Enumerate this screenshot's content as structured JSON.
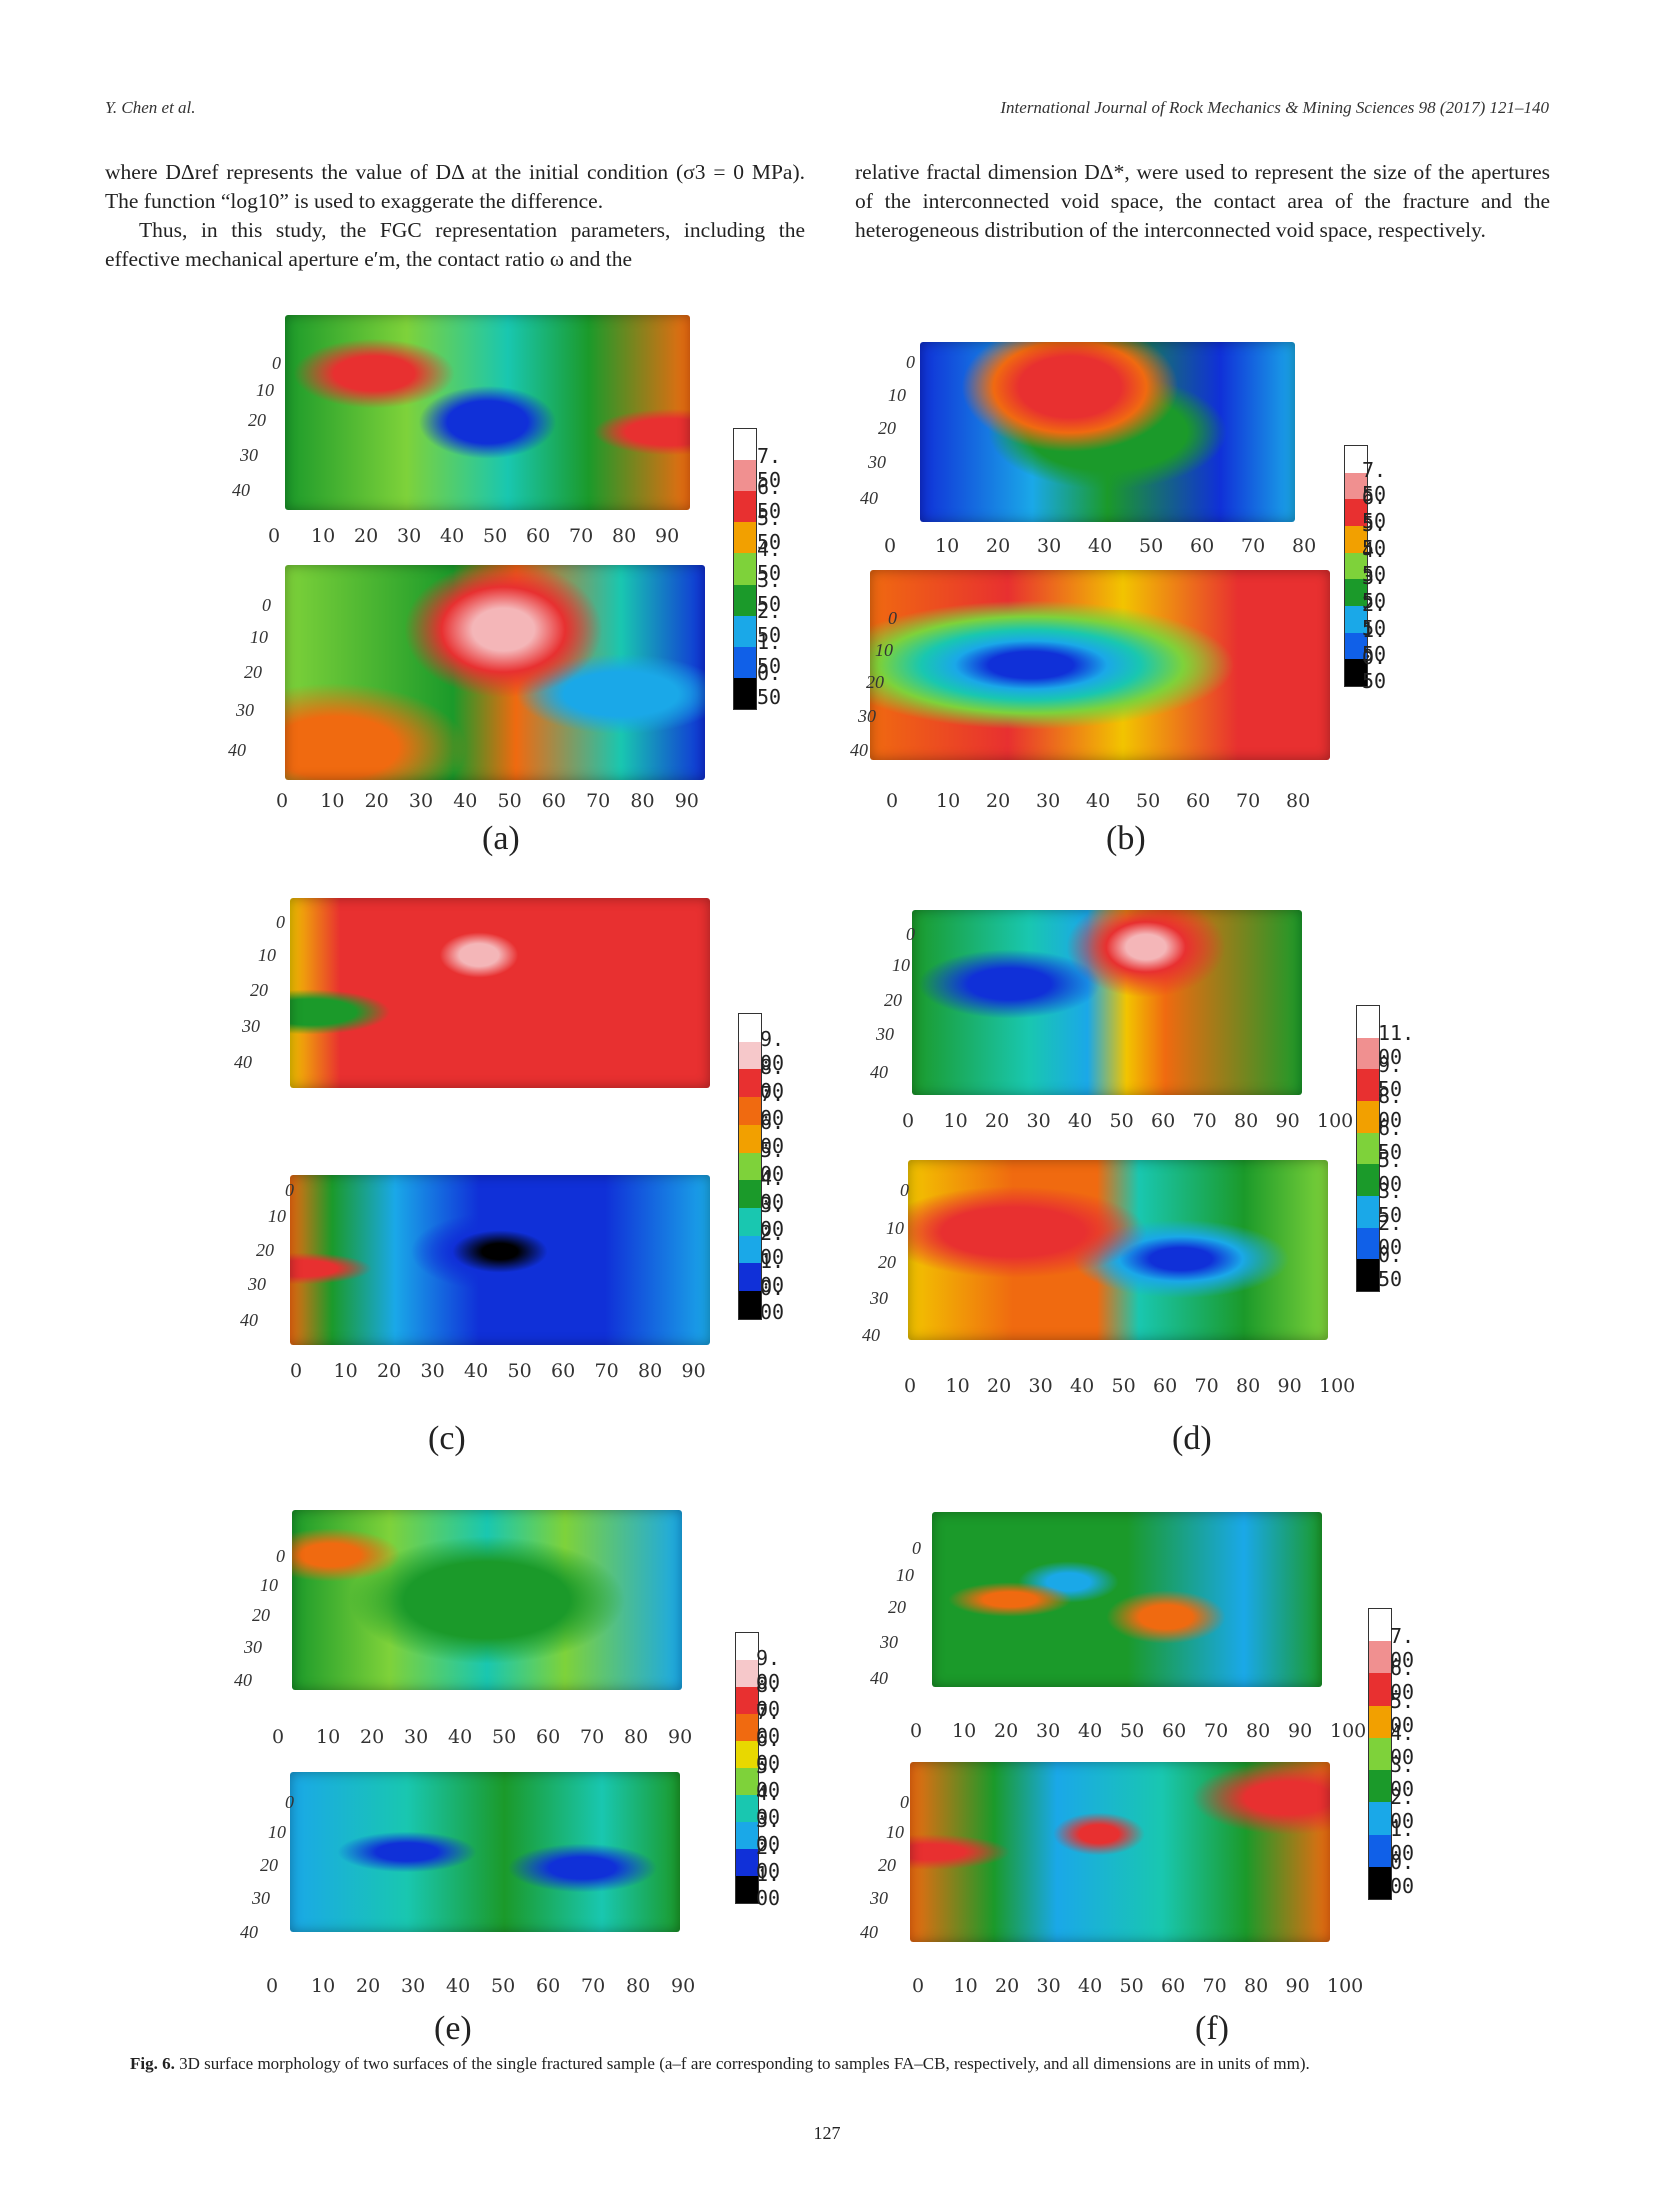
{
  "header": {
    "left": "Y. Chen et al.",
    "right": "International Journal of Rock Mechanics & Mining Sciences 98 (2017) 121–140"
  },
  "text_left": {
    "p1": "where DΔref represents the value of DΔ at the initial condition (σ3 = 0 MPa). The function “log10” is used to exaggerate the difference.",
    "p2": "Thus, in this study, the FGC representation parameters, including the effective mechanical aperture e′m, the contact ratio ω and the"
  },
  "text_right": {
    "p1": "relative fractal dimension DΔ*, were used to represent the size of the apertures of the interconnected void space, the contact area of the fracture and the heterogeneous distribution of the interconnected void space, respectively."
  },
  "figures": {
    "a": {
      "label": "(a)",
      "yticks": [
        "0",
        "10",
        "20",
        "30",
        "40"
      ],
      "xticks": [
        "0",
        "10",
        "20",
        "30",
        "40",
        "50",
        "60",
        "70",
        "80",
        "90"
      ],
      "colorbar": [
        "7. 50",
        "6. 50",
        "5. 50",
        "4. 50",
        "3. 50",
        "2. 50",
        "1. 50",
        "0. 50"
      ]
    },
    "b": {
      "label": "(b)",
      "yticks": [
        "0",
        "10",
        "20",
        "30",
        "40"
      ],
      "xticks": [
        "0",
        "10",
        "20",
        "30",
        "40",
        "50",
        "60",
        "70",
        "80"
      ],
      "colorbar": [
        "7. 50",
        "6. 50",
        "5. 50",
        "4. 50",
        "3. 50",
        "2. 50",
        "1. 50",
        "0. 50"
      ]
    },
    "c": {
      "label": "(c)",
      "yticks": [
        "0",
        "10",
        "20",
        "30",
        "40"
      ],
      "xticks": [
        "0",
        "10",
        "20",
        "30",
        "40",
        "50",
        "60",
        "70",
        "80",
        "90"
      ],
      "colorbar": [
        "9. 00",
        "8. 00",
        "7. 00",
        "6. 00",
        "5. 00",
        "4. 00",
        "3. 00",
        "2. 00",
        "1. 00",
        "0. 00"
      ]
    },
    "d": {
      "label": "(d)",
      "yticks": [
        "0",
        "10",
        "20",
        "30",
        "40"
      ],
      "xticks": [
        "0",
        "10",
        "20",
        "30",
        "40",
        "50",
        "60",
        "70",
        "80",
        "90",
        "100"
      ],
      "colorbar": [
        "11. 00",
        "9. 50",
        "8. 00",
        "6. 50",
        "5. 00",
        "3. 50",
        "2. 00",
        "0. 50"
      ]
    },
    "e": {
      "label": "(e)",
      "yticks": [
        "0",
        "10",
        "20",
        "30",
        "40"
      ],
      "xticks": [
        "0",
        "10",
        "20",
        "30",
        "40",
        "50",
        "60",
        "70",
        "80",
        "90"
      ],
      "colorbar": [
        "9. 00",
        "8. 00",
        "7. 00",
        "6. 00",
        "5. 00",
        "4. 00",
        "3. 00",
        "2. 00",
        "1. 00"
      ]
    },
    "f": {
      "label": "(f)",
      "yticks": [
        "0",
        "10",
        "20",
        "30",
        "40"
      ],
      "xticks": [
        "0",
        "10",
        "20",
        "30",
        "40",
        "50",
        "60",
        "70",
        "80",
        "90",
        "100"
      ],
      "colorbar": [
        "7. 00",
        "6. 00",
        "5. 00",
        "4. 00",
        "3. 00",
        "2. 00",
        "1. 00",
        "0. 00"
      ]
    }
  },
  "caption": {
    "bold": "Fig. 6.",
    "text": "3D surface morphology of two surfaces of the single fractured sample (a–f are corresponding to samples FA–CB, respectively, and all dimensions are in units of mm)."
  },
  "page_number": "127",
  "colormap": [
    "#ffffff",
    "#f4b6b8",
    "#e83030",
    "#f06a10",
    "#f2c400",
    "#7ed23a",
    "#1b9a2a",
    "#19c7b0",
    "#1aa8e8",
    "#1030d8",
    "#000000"
  ]
}
